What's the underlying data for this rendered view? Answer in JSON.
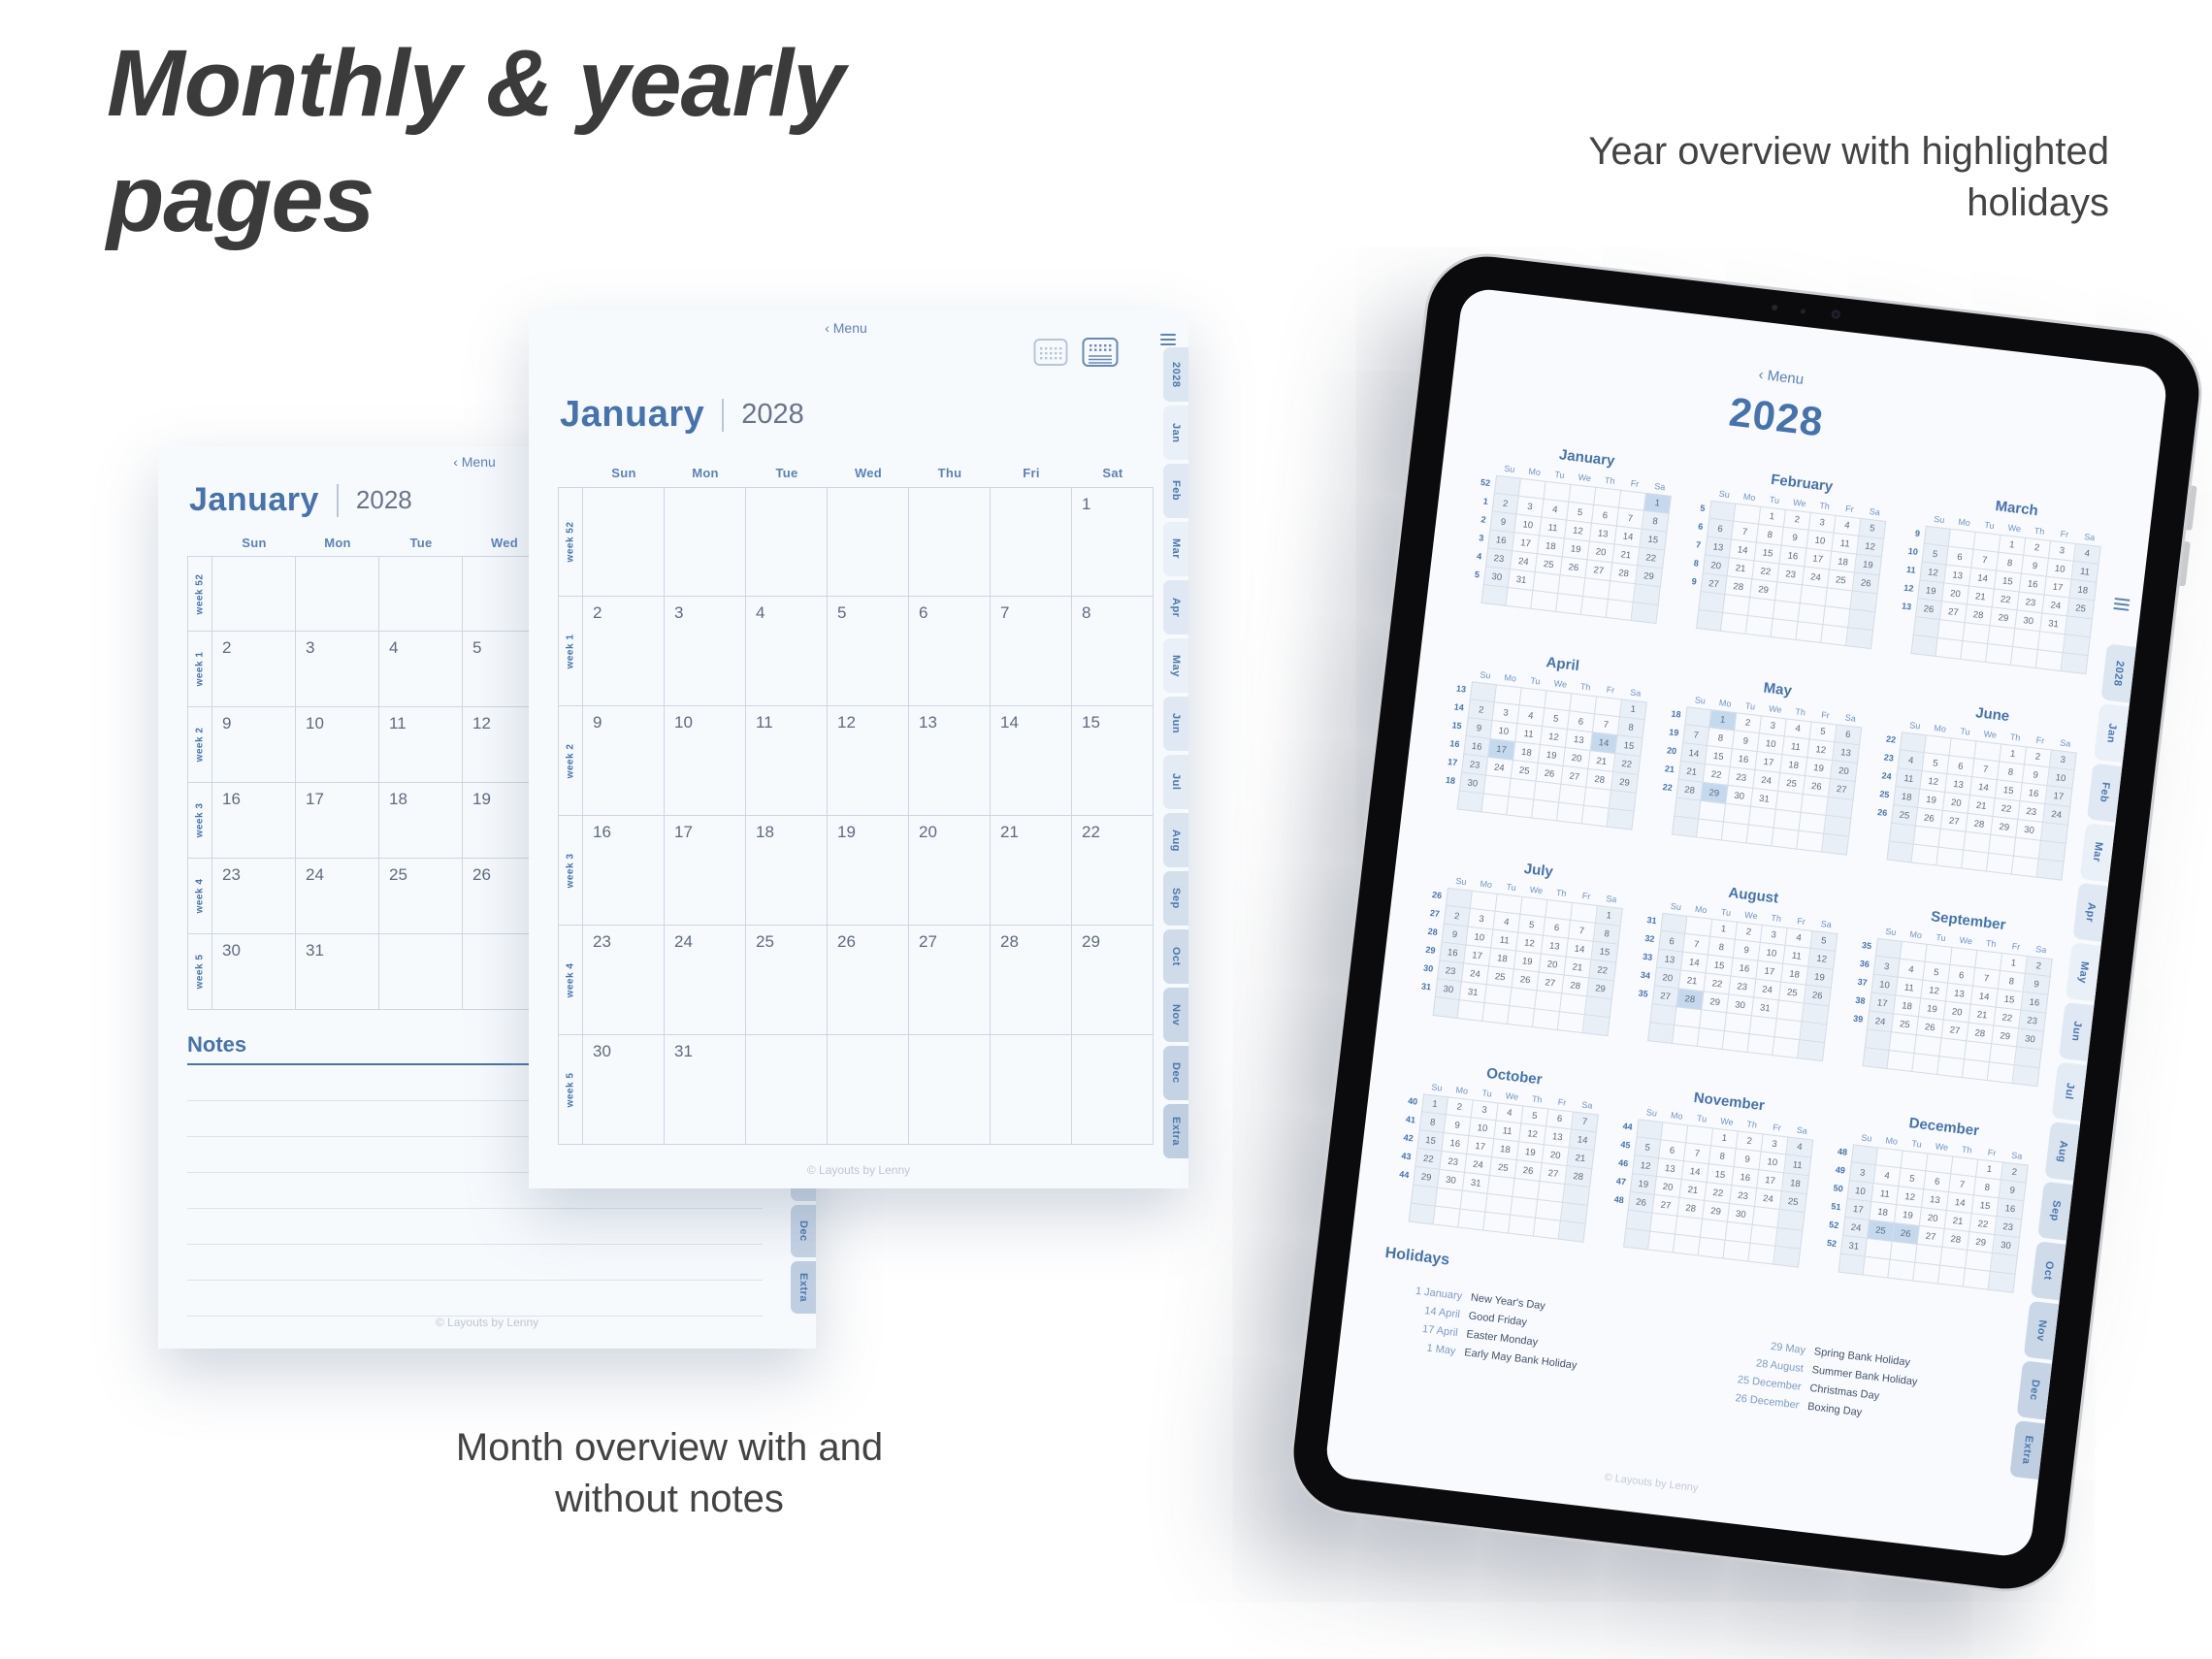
{
  "title": {
    "line1": "Monthly & yearly",
    "line2": "pages"
  },
  "captions": {
    "year_line1": "Year overview with highlighted",
    "year_line2": "holidays",
    "month_line1": "Month overview with and",
    "month_line2": "without notes"
  },
  "colors": {
    "accent": "#4673ae",
    "menu": "#5b82b5",
    "daynum": "#5e6b7d",
    "grid_line": "#ccd6e2",
    "weekend": "#e9eff7",
    "holiday": "#c5d9ee",
    "tab_shades": [
      "#dce6f1",
      "#eaf0f7",
      "#e0e9f3",
      "#eaf0f7",
      "#e0e9f3",
      "#eaf0f7",
      "#e0e9f3",
      "#e3ebf4",
      "#dae4ef",
      "#d4dfec",
      "#cfdbe9",
      "#cad7e6",
      "#c5d3e4",
      "#bfcfe1"
    ]
  },
  "monthly_page": {
    "menu_label": "‹ Menu",
    "month_name": "January",
    "year": "2028",
    "day_headers": [
      "Sun",
      "Mon",
      "Tue",
      "Wed",
      "Thu",
      "Fri",
      "Sat"
    ],
    "week_labels": [
      "week 52",
      "week 1",
      "week 2",
      "week 3",
      "week 4",
      "week 5"
    ],
    "rows": [
      [
        "",
        "",
        "",
        "",
        "",
        "",
        "1"
      ],
      [
        "2",
        "3",
        "4",
        "5",
        "6",
        "7",
        "8"
      ],
      [
        "9",
        "10",
        "11",
        "12",
        "13",
        "14",
        "15"
      ],
      [
        "16",
        "17",
        "18",
        "19",
        "20",
        "21",
        "22"
      ],
      [
        "23",
        "24",
        "25",
        "26",
        "27",
        "28",
        "29"
      ],
      [
        "30",
        "31",
        "",
        "",
        "",
        "",
        ""
      ]
    ],
    "notes_label": "Notes",
    "watermark": "© Layouts by Lenny",
    "tabs": [
      "2028",
      "Jan",
      "Feb",
      "Mar",
      "Apr",
      "May",
      "Jun",
      "Jul",
      "Aug",
      "Sep",
      "Oct",
      "Nov",
      "Dec",
      "Extra"
    ]
  },
  "year_page": {
    "menu_label": "‹ Menu",
    "year": "2028",
    "day_headers": [
      "Su",
      "Mo",
      "Tu",
      "We",
      "Th",
      "Fr",
      "Sa"
    ],
    "months": [
      {
        "name": "January",
        "weeks": [
          52,
          1,
          2,
          3,
          4,
          5
        ],
        "holidays": [
          1
        ],
        "rows": [
          [
            "",
            "",
            "",
            "",
            "",
            "",
            1
          ],
          [
            2,
            3,
            4,
            5,
            6,
            7,
            8
          ],
          [
            9,
            10,
            11,
            12,
            13,
            14,
            15
          ],
          [
            16,
            17,
            18,
            19,
            20,
            21,
            22
          ],
          [
            23,
            24,
            25,
            26,
            27,
            28,
            29
          ],
          [
            30,
            31,
            "",
            "",
            "",
            "",
            ""
          ]
        ]
      },
      {
        "name": "February",
        "weeks": [
          5,
          6,
          7,
          8,
          9
        ],
        "holidays": [],
        "rows": [
          [
            "",
            "",
            1,
            2,
            3,
            4,
            5
          ],
          [
            6,
            7,
            8,
            9,
            10,
            11,
            12
          ],
          [
            13,
            14,
            15,
            16,
            17,
            18,
            19
          ],
          [
            20,
            21,
            22,
            23,
            24,
            25,
            26
          ],
          [
            27,
            28,
            29,
            "",
            "",
            "",
            ""
          ]
        ]
      },
      {
        "name": "March",
        "weeks": [
          9,
          10,
          11,
          12,
          13
        ],
        "holidays": [],
        "rows": [
          [
            "",
            "",
            "",
            1,
            2,
            3,
            4
          ],
          [
            5,
            6,
            7,
            8,
            9,
            10,
            11
          ],
          [
            12,
            13,
            14,
            15,
            16,
            17,
            18
          ],
          [
            19,
            20,
            21,
            22,
            23,
            24,
            25
          ],
          [
            26,
            27,
            28,
            29,
            30,
            31,
            ""
          ]
        ]
      },
      {
        "name": "April",
        "weeks": [
          13,
          14,
          15,
          16,
          17,
          18
        ],
        "holidays": [
          14,
          17
        ],
        "rows": [
          [
            "",
            "",
            "",
            "",
            "",
            "",
            1
          ],
          [
            2,
            3,
            4,
            5,
            6,
            7,
            8
          ],
          [
            9,
            10,
            11,
            12,
            13,
            14,
            15
          ],
          [
            16,
            17,
            18,
            19,
            20,
            21,
            22
          ],
          [
            23,
            24,
            25,
            26,
            27,
            28,
            29
          ],
          [
            30,
            "",
            "",
            "",
            "",
            "",
            ""
          ]
        ]
      },
      {
        "name": "May",
        "weeks": [
          18,
          19,
          20,
          21,
          22
        ],
        "holidays": [
          1,
          29
        ],
        "rows": [
          [
            "",
            1,
            2,
            3,
            4,
            5,
            6
          ],
          [
            7,
            8,
            9,
            10,
            11,
            12,
            13
          ],
          [
            14,
            15,
            16,
            17,
            18,
            19,
            20
          ],
          [
            21,
            22,
            23,
            24,
            25,
            26,
            27
          ],
          [
            28,
            29,
            30,
            31,
            "",
            "",
            ""
          ]
        ]
      },
      {
        "name": "June",
        "weeks": [
          22,
          23,
          24,
          25,
          26
        ],
        "holidays": [],
        "rows": [
          [
            "",
            "",
            "",
            "",
            1,
            2,
            3
          ],
          [
            4,
            5,
            6,
            7,
            8,
            9,
            10
          ],
          [
            11,
            12,
            13,
            14,
            15,
            16,
            17
          ],
          [
            18,
            19,
            20,
            21,
            22,
            23,
            24
          ],
          [
            25,
            26,
            27,
            28,
            29,
            30,
            ""
          ]
        ]
      },
      {
        "name": "July",
        "weeks": [
          26,
          27,
          28,
          29,
          30,
          31
        ],
        "holidays": [],
        "rows": [
          [
            "",
            "",
            "",
            "",
            "",
            "",
            1
          ],
          [
            2,
            3,
            4,
            5,
            6,
            7,
            8
          ],
          [
            9,
            10,
            11,
            12,
            13,
            14,
            15
          ],
          [
            16,
            17,
            18,
            19,
            20,
            21,
            22
          ],
          [
            23,
            24,
            25,
            26,
            27,
            28,
            29
          ],
          [
            30,
            31,
            "",
            "",
            "",
            "",
            ""
          ]
        ]
      },
      {
        "name": "August",
        "weeks": [
          31,
          32,
          33,
          34,
          35
        ],
        "holidays": [
          28
        ],
        "rows": [
          [
            "",
            "",
            1,
            2,
            3,
            4,
            5
          ],
          [
            6,
            7,
            8,
            9,
            10,
            11,
            12
          ],
          [
            13,
            14,
            15,
            16,
            17,
            18,
            19
          ],
          [
            20,
            21,
            22,
            23,
            24,
            25,
            26
          ],
          [
            27,
            28,
            29,
            30,
            31,
            "",
            ""
          ]
        ]
      },
      {
        "name": "September",
        "weeks": [
          35,
          36,
          37,
          38,
          39
        ],
        "holidays": [],
        "rows": [
          [
            "",
            "",
            "",
            "",
            "",
            1,
            2
          ],
          [
            3,
            4,
            5,
            6,
            7,
            8,
            9
          ],
          [
            10,
            11,
            12,
            13,
            14,
            15,
            16
          ],
          [
            17,
            18,
            19,
            20,
            21,
            22,
            23
          ],
          [
            24,
            25,
            26,
            27,
            28,
            29,
            30
          ]
        ]
      },
      {
        "name": "October",
        "weeks": [
          40,
          41,
          42,
          43,
          44
        ],
        "holidays": [],
        "rows": [
          [
            1,
            2,
            3,
            4,
            5,
            6,
            7
          ],
          [
            8,
            9,
            10,
            11,
            12,
            13,
            14
          ],
          [
            15,
            16,
            17,
            18,
            19,
            20,
            21
          ],
          [
            22,
            23,
            24,
            25,
            26,
            27,
            28
          ],
          [
            29,
            30,
            31,
            "",
            "",
            "",
            ""
          ]
        ]
      },
      {
        "name": "November",
        "weeks": [
          44,
          45,
          46,
          47,
          48
        ],
        "holidays": [],
        "rows": [
          [
            "",
            "",
            "",
            1,
            2,
            3,
            4
          ],
          [
            5,
            6,
            7,
            8,
            9,
            10,
            11
          ],
          [
            12,
            13,
            14,
            15,
            16,
            17,
            18
          ],
          [
            19,
            20,
            21,
            22,
            23,
            24,
            25
          ],
          [
            26,
            27,
            28,
            29,
            30,
            "",
            ""
          ]
        ]
      },
      {
        "name": "December",
        "weeks": [
          48,
          49,
          50,
          51,
          52,
          52
        ],
        "holidays": [
          25,
          26
        ],
        "rows": [
          [
            "",
            "",
            "",
            "",
            "",
            1,
            2
          ],
          [
            3,
            4,
            5,
            6,
            7,
            8,
            9
          ],
          [
            10,
            11,
            12,
            13,
            14,
            15,
            16
          ],
          [
            17,
            18,
            19,
            20,
            21,
            22,
            23
          ],
          [
            24,
            25,
            26,
            27,
            28,
            29,
            30
          ],
          [
            31,
            "",
            "",
            "",
            "",
            "",
            ""
          ]
        ]
      }
    ],
    "holidays_title": "Holidays",
    "holidays_col1": [
      {
        "date": "1 January",
        "name": "New Year's Day"
      },
      {
        "date": "14 April",
        "name": "Good Friday"
      },
      {
        "date": "17 April",
        "name": "Easter Monday"
      },
      {
        "date": "1 May",
        "name": "Early May Bank Holiday"
      }
    ],
    "holidays_col2": [
      {
        "date": "29 May",
        "name": "Spring Bank Holiday"
      },
      {
        "date": "28 August",
        "name": "Summer Bank Holiday"
      },
      {
        "date": "25 December",
        "name": "Christmas Day"
      },
      {
        "date": "26 December",
        "name": "Boxing Day"
      }
    ],
    "watermark": "© Layouts by Lenny",
    "tabs": [
      "2028",
      "Jan",
      "Feb",
      "Mar",
      "Apr",
      "May",
      "Jun",
      "Jul",
      "Aug",
      "Sep",
      "Oct",
      "Nov",
      "Dec",
      "Extra"
    ]
  }
}
